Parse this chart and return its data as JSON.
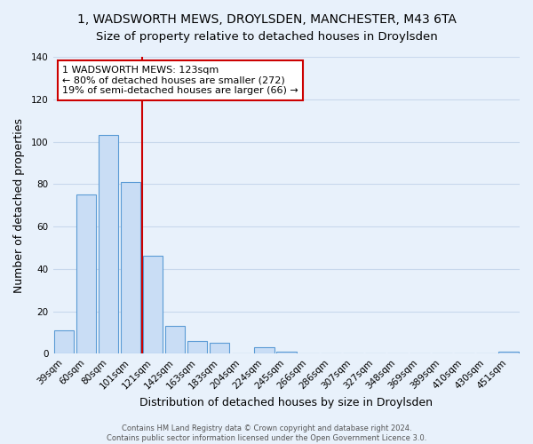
{
  "title": "1, WADSWORTH MEWS, DROYLSDEN, MANCHESTER, M43 6TA",
  "subtitle": "Size of property relative to detached houses in Droylsden",
  "xlabel": "Distribution of detached houses by size in Droylsden",
  "ylabel": "Number of detached properties",
  "bar_labels": [
    "39sqm",
    "60sqm",
    "80sqm",
    "101sqm",
    "121sqm",
    "142sqm",
    "163sqm",
    "183sqm",
    "204sqm",
    "224sqm",
    "245sqm",
    "266sqm",
    "286sqm",
    "307sqm",
    "327sqm",
    "348sqm",
    "369sqm",
    "389sqm",
    "410sqm",
    "430sqm",
    "451sqm"
  ],
  "bar_values": [
    11,
    75,
    103,
    81,
    46,
    13,
    6,
    5,
    0,
    3,
    1,
    0,
    0,
    0,
    0,
    0,
    0,
    0,
    0,
    0,
    1
  ],
  "bar_color": "#c9ddf5",
  "bar_edge_color": "#5b9bd5",
  "ylim": [
    0,
    140
  ],
  "yticks": [
    0,
    20,
    40,
    60,
    80,
    100,
    120,
    140
  ],
  "vline_x": 3.5,
  "vline_color": "#cc0000",
  "annotation_title": "1 WADSWORTH MEWS: 123sqm",
  "annotation_line1": "← 80% of detached houses are smaller (272)",
  "annotation_line2": "19% of semi-detached houses are larger (66) →",
  "footer_line1": "Contains HM Land Registry data © Crown copyright and database right 2024.",
  "footer_line2": "Contains public sector information licensed under the Open Government Licence 3.0.",
  "background_color": "#e8f1fb",
  "plot_background": "#e8f1fb",
  "grid_color": "#c8d8ec",
  "title_fontsize": 10,
  "subtitle_fontsize": 9.5,
  "axis_label_fontsize": 9,
  "tick_fontsize": 7.5
}
